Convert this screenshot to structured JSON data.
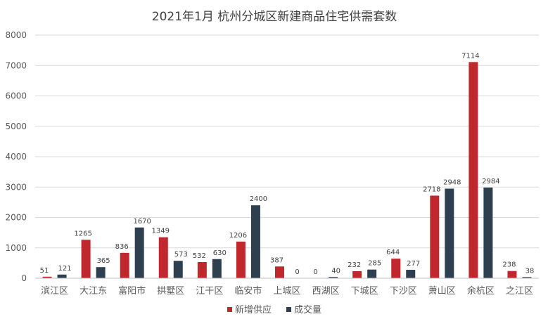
{
  "chart_data": {
    "type": "bar",
    "title": "2021年1月 杭州分城区新建商品住宅供需套数",
    "categories": [
      "滨江区",
      "大江东",
      "富阳市",
      "拱墅区",
      "江干区",
      "临安市",
      "上城区",
      "西湖区",
      "下城区",
      "下沙区",
      "萧山区",
      "余杭区",
      "之江区"
    ],
    "series": [
      {
        "name": "新增供应",
        "color": "#c0282d",
        "values": [
          51,
          1265,
          836,
          1349,
          532,
          1206,
          387,
          0,
          232,
          644,
          2718,
          7114,
          238
        ]
      },
      {
        "name": "成交量",
        "color": "#2e3f50",
        "values": [
          121,
          365,
          1670,
          573,
          630,
          2400,
          0,
          40,
          285,
          277,
          2948,
          2984,
          38
        ]
      }
    ],
    "yticks": [
      "0",
      "1000",
      "2000",
      "3000",
      "4000",
      "5000",
      "6000",
      "7000",
      "8000"
    ],
    "ylim": [
      0,
      8000
    ],
    "grid": true,
    "legend_position": "bottom"
  }
}
